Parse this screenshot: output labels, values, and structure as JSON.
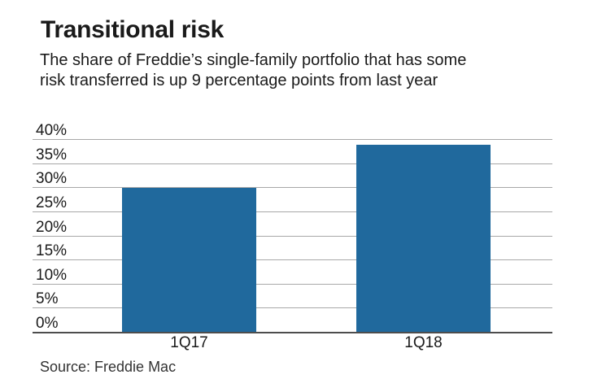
{
  "header": {
    "title": "Transitional risk",
    "subtitle_line1": "The share of Freddie’s single-family portfolio that has some",
    "subtitle_line2": "risk transferred is up 9 percentage points from last year"
  },
  "chart_data": {
    "type": "bar",
    "title": "Transitional risk",
    "subtitle": "The share of Freddie’s single-family portfolio that has some risk transferred is up 9 percentage points from last year",
    "categories": [
      "1Q17",
      "1Q18"
    ],
    "values": [
      29.8,
      38.8
    ],
    "xlabel": "",
    "ylabel": "",
    "ylim": [
      0,
      40
    ],
    "ytick_step": 5,
    "ytick_suffix": "%",
    "grid": true,
    "legend": "none",
    "bar_color": "#20699d"
  },
  "footer": {
    "source": "Source: Freddie Mac"
  },
  "colors": {
    "bar": "#20699d",
    "gridline": "#a8a8a8",
    "axis": "#4d4d4d",
    "text": "#1a1a1a",
    "source_text": "#333333",
    "background": "#ffffff"
  }
}
